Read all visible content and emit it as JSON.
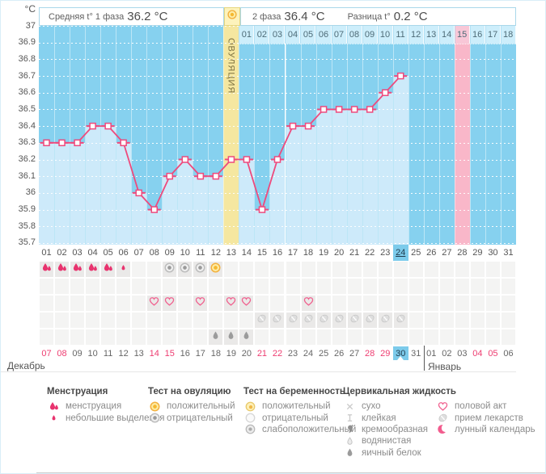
{
  "header": {
    "unit": "°C",
    "avg_phase1_label": "Средняя t° 1 фаза",
    "avg_phase1_value": "36.2 °C",
    "ovulation_marker_icon": "test-positive",
    "phase2_label": "2 фаза",
    "phase2_value": "36.4 °C",
    "diff_label": "Разница t°",
    "diff_value": "0.2 °C"
  },
  "chart_data": {
    "type": "line",
    "title": "Basal body temperature cycle chart",
    "x_cycle_days": [
      "01",
      "02",
      "03",
      "04",
      "05",
      "06",
      "07",
      "08",
      "09",
      "10",
      "11",
      "12",
      "13",
      "14",
      "15",
      "16",
      "17",
      "18",
      "19",
      "20",
      "21",
      "22",
      "23",
      "24",
      "25",
      "26",
      "27",
      "28",
      "29",
      "30",
      "31"
    ],
    "values": [
      36.3,
      36.3,
      36.3,
      36.4,
      36.4,
      36.3,
      36.0,
      35.9,
      36.1,
      36.2,
      36.1,
      36.1,
      36.2,
      36.2,
      35.9,
      36.2,
      36.4,
      36.4,
      36.5,
      36.5,
      36.5,
      36.5,
      36.6,
      36.7,
      null,
      null,
      null,
      null,
      null,
      null,
      null
    ],
    "ylim": [
      35.7,
      37
    ],
    "y_tick_labels": [
      "37",
      "36.9",
      "36.8",
      "36.7",
      "36.6",
      "36.5",
      "36.4",
      "36.3",
      "36.2",
      "36.1",
      "36",
      "35.9",
      "35.8",
      "35.7"
    ],
    "grid": "dotted-horizontal",
    "ovulation_day": 13,
    "ovulation_label": "ОВУЛЯЦИЯ",
    "lunar_day": 28,
    "today_cycle_day": 24,
    "avg_phase1": 36.2,
    "avg_phase2": 36.4,
    "difference": 0.2,
    "dpo_row": {
      "start_cycle_day": 14,
      "labels": [
        "01",
        "02",
        "03",
        "04",
        "05",
        "06",
        "07",
        "08",
        "09",
        "10",
        "11",
        "12",
        "13",
        "14",
        "15",
        "16",
        "17",
        "18"
      ],
      "highlight_label": "15"
    }
  },
  "grid_rows": [
    {
      "name": "menstruation-and-ovulation-test-row",
      "cells": [
        {
          "day": 1,
          "icon": "drops-large"
        },
        {
          "day": 2,
          "icon": "drops-large"
        },
        {
          "day": 3,
          "icon": "drops-large"
        },
        {
          "day": 4,
          "icon": "drops-large"
        },
        {
          "day": 5,
          "icon": "drops-large"
        },
        {
          "day": 6,
          "icon": "drop-small"
        },
        {
          "day": 9,
          "icon": "test-negative"
        },
        {
          "day": 10,
          "icon": "test-negative"
        },
        {
          "day": 11,
          "icon": "test-negative"
        },
        {
          "day": 12,
          "icon": "test-positive"
        }
      ]
    },
    {
      "name": "pregnancy-test-row",
      "cells": []
    },
    {
      "name": "intercourse-row",
      "cells": [
        {
          "day": 8,
          "icon": "heart"
        },
        {
          "day": 9,
          "icon": "heart"
        },
        {
          "day": 11,
          "icon": "heart"
        },
        {
          "day": 13,
          "icon": "heart"
        },
        {
          "day": 14,
          "icon": "heart"
        },
        {
          "day": 18,
          "icon": "heart"
        }
      ]
    },
    {
      "name": "medication-row",
      "cells": [
        {
          "day": 15,
          "icon": "pill"
        },
        {
          "day": 16,
          "icon": "pill"
        },
        {
          "day": 17,
          "icon": "pill"
        },
        {
          "day": 18,
          "icon": "pill"
        },
        {
          "day": 19,
          "icon": "pill"
        },
        {
          "day": 20,
          "icon": "pill"
        },
        {
          "day": 21,
          "icon": "pill"
        },
        {
          "day": 22,
          "icon": "pill"
        },
        {
          "day": 23,
          "icon": "pill"
        },
        {
          "day": 24,
          "icon": "pill"
        }
      ]
    },
    {
      "name": "cervical-fluid-row",
      "cells": [
        {
          "day": 12,
          "icon": "cf-eggwhite"
        },
        {
          "day": 13,
          "icon": "cf-eggwhite"
        },
        {
          "day": 14,
          "icon": "cf-eggwhite"
        }
      ]
    }
  ],
  "calendar": {
    "december_label": "Декабрь",
    "january_label": "Январь",
    "separator_after_index": 24,
    "dates": [
      {
        "label": "07",
        "weekend": true
      },
      {
        "label": "08",
        "weekend": true
      },
      {
        "label": "09",
        "weekend": false
      },
      {
        "label": "10",
        "weekend": false
      },
      {
        "label": "11",
        "weekend": false
      },
      {
        "label": "12",
        "weekend": false
      },
      {
        "label": "13",
        "weekend": false
      },
      {
        "label": "14",
        "weekend": true
      },
      {
        "label": "15",
        "weekend": true
      },
      {
        "label": "16",
        "weekend": false
      },
      {
        "label": "17",
        "weekend": false
      },
      {
        "label": "18",
        "weekend": false
      },
      {
        "label": "19",
        "weekend": false
      },
      {
        "label": "20",
        "weekend": false
      },
      {
        "label": "21",
        "weekend": true
      },
      {
        "label": "22",
        "weekend": true
      },
      {
        "label": "23",
        "weekend": false
      },
      {
        "label": "24",
        "weekend": false
      },
      {
        "label": "25",
        "weekend": false
      },
      {
        "label": "26",
        "weekend": false
      },
      {
        "label": "27",
        "weekend": false
      },
      {
        "label": "28",
        "weekend": true
      },
      {
        "label": "29",
        "weekend": true
      },
      {
        "label": "30",
        "weekend": false,
        "today": true
      },
      {
        "label": "31",
        "weekend": false
      },
      {
        "label": "01",
        "weekend": false
      },
      {
        "label": "02",
        "weekend": false
      },
      {
        "label": "03",
        "weekend": false
      },
      {
        "label": "04",
        "weekend": true
      },
      {
        "label": "05",
        "weekend": true
      },
      {
        "label": "06",
        "weekend": false
      }
    ]
  },
  "legend": [
    {
      "header": "Менструация",
      "items": [
        {
          "icon": "drops-large",
          "label": "менструация"
        },
        {
          "icon": "drop-small",
          "label": "небольшие выделения"
        }
      ]
    },
    {
      "header": "Тест на овуляцию",
      "items": [
        {
          "icon": "test-positive",
          "label": "положительный"
        },
        {
          "icon": "test-negative",
          "label": "отрицательный"
        }
      ]
    },
    {
      "header": "Тест на беременность",
      "items": [
        {
          "icon": "preg-positive",
          "label": "положительный"
        },
        {
          "icon": "preg-negative",
          "label": "отрицательный"
        },
        {
          "icon": "preg-weak",
          "label": "слабоположительный"
        }
      ]
    },
    {
      "header": "Цервикальная жидкость",
      "items": [
        {
          "icon": "cf-dry",
          "label": "сухо"
        },
        {
          "icon": "cf-sticky",
          "label": "клейкая"
        },
        {
          "icon": "cf-creamy",
          "label": "кремообразная"
        },
        {
          "icon": "cf-watery",
          "label": "водянистая"
        },
        {
          "icon": "cf-eggwhite",
          "label": "яичный белок"
        }
      ]
    },
    {
      "header": "",
      "items": [
        {
          "icon": "heart",
          "label": "половой акт"
        },
        {
          "icon": "pill",
          "label": "прием лекарств"
        },
        {
          "icon": "moon",
          "label": "лунный календарь"
        }
      ]
    }
  ],
  "colors": {
    "chart_bg": "#86d1ef",
    "curve_fill": "#cdeafa",
    "ovulation_column": "#f5e7a0",
    "lunar_column": "#f9b7c9",
    "temperature_line": "#ee4a7d",
    "today_highlight": "#7ccbeb",
    "weekend_date": "#ee3d71",
    "menstruation_icon": "#e8336e"
  }
}
